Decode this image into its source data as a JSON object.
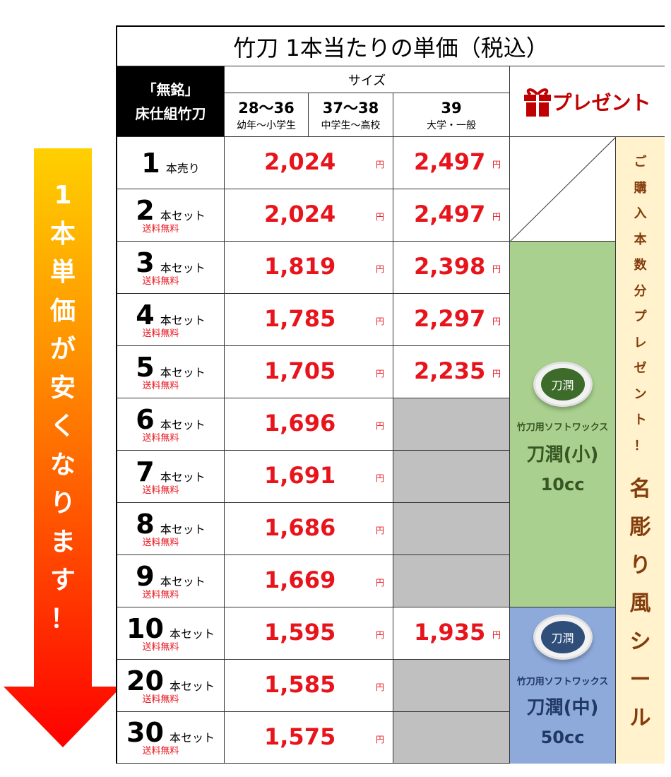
{
  "arrow_text": [
    "1",
    "本",
    "単",
    "価",
    "が",
    "安",
    "く",
    "な",
    "り",
    "ま",
    "す",
    "！"
  ],
  "title": "竹刀 1本当たりの単価（税込）",
  "header": {
    "product_line1": "「無銘」",
    "product_line2": "床仕組竹刀",
    "size_label": "サイズ",
    "sizes": [
      {
        "size": "28～36",
        "group": "幼年～小学生"
      },
      {
        "size": "37～38",
        "group": "中学生～高校"
      },
      {
        "size": "39",
        "group": "大学・一般"
      }
    ],
    "present": "プレゼント",
    "present_icon": "gift-icon"
  },
  "yen": "円",
  "free_shipping": "送料無料",
  "rows": [
    {
      "qty": "1",
      "unit": "本売り",
      "free": "",
      "price_small": "2,024",
      "price_large": "2,497"
    },
    {
      "qty": "2",
      "unit": "本セット",
      "free": "送料無料",
      "price_small": "2,024",
      "price_large": "2,497"
    },
    {
      "qty": "3",
      "unit": "本セット",
      "free": "送料無料",
      "price_small": "1,819",
      "price_large": "2,398"
    },
    {
      "qty": "4",
      "unit": "本セット",
      "free": "送料無料",
      "price_small": "1,785",
      "price_large": "2,297"
    },
    {
      "qty": "5",
      "unit": "本セット",
      "free": "送料無料",
      "price_small": "1,705",
      "price_large": "2,235"
    },
    {
      "qty": "6",
      "unit": "本セット",
      "free": "送料無料",
      "price_small": "1,696",
      "price_large": ""
    },
    {
      "qty": "7",
      "unit": "本セット",
      "free": "送料無料",
      "price_small": "1,691",
      "price_large": ""
    },
    {
      "qty": "8",
      "unit": "本セット",
      "free": "送料無料",
      "price_small": "1,686",
      "price_large": ""
    },
    {
      "qty": "9",
      "unit": "本セット",
      "free": "送料無料",
      "price_small": "1,669",
      "price_large": ""
    },
    {
      "qty": "10",
      "unit": "本セット",
      "free": "送料無料",
      "price_small": "1,595",
      "price_large": "1,935"
    },
    {
      "qty": "20",
      "unit": "本セット",
      "free": "送料無料",
      "price_small": "1,585",
      "price_large": ""
    },
    {
      "qty": "30",
      "unit": "本セット",
      "free": "送料無料",
      "price_small": "1,575",
      "price_large": ""
    }
  ],
  "gifts": [
    {
      "caption": "竹刀用ソフトワックス",
      "name": "刀潤(小)",
      "volume": "10cc",
      "jar_label": "刀潤",
      "color": "#a9d08e"
    },
    {
      "caption": "竹刀用ソフトワックス",
      "name": "刀潤(中)",
      "volume": "50cc",
      "jar_label": "刀潤",
      "color": "#8eaadb"
    }
  ],
  "side_note_small": [
    "ご",
    "購",
    "入",
    "本",
    "数",
    "分",
    "プ",
    "レ",
    "ゼ",
    "ン",
    "ト",
    "！"
  ],
  "side_note_large": [
    "名",
    "彫",
    "り",
    "風",
    "シ",
    "ー",
    "ル"
  ],
  "colors": {
    "price_red": "#e8141c",
    "arrow_top": "#ffc000",
    "arrow_bottom": "#ff0000",
    "gray_cell": "#c0c0c0",
    "side_bg": "#fff2cc"
  }
}
